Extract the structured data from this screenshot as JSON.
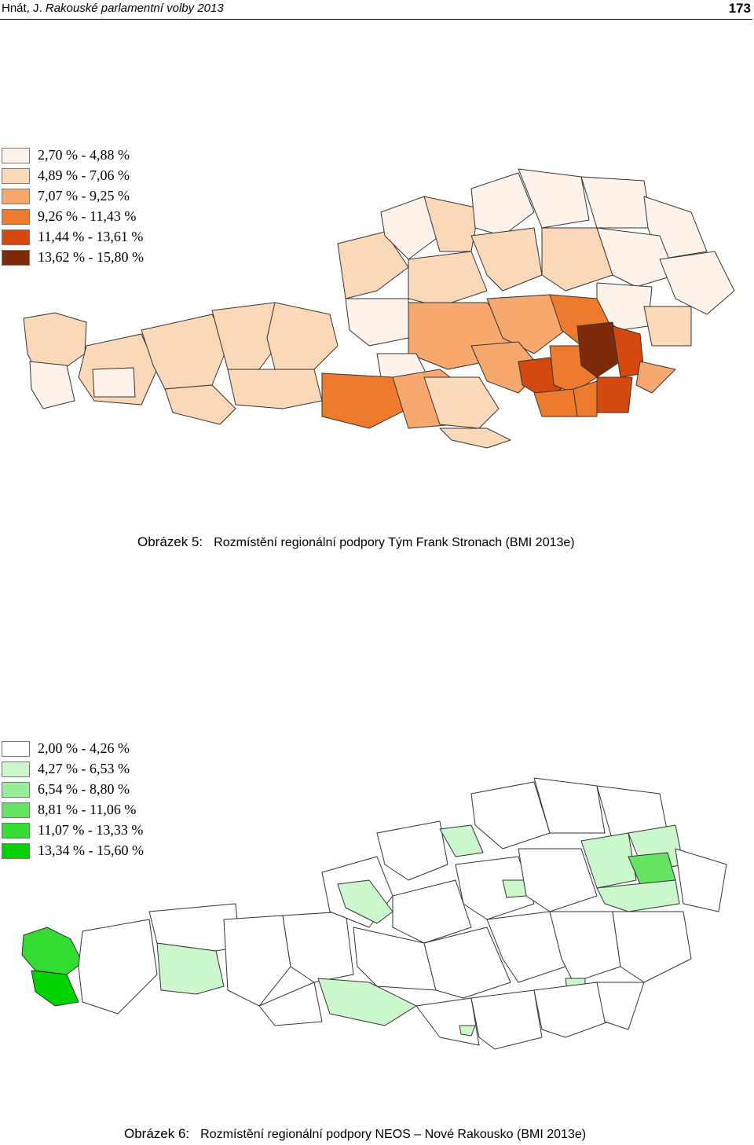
{
  "header": {
    "left_author": "Hnát, J. ",
    "left_title": "Rakouské parlamentní volby 2013",
    "page_number": "173"
  },
  "figure5": {
    "caption_label": "Obrázek 5:",
    "caption_text": "Rozmístění regionální podpory Tým Frank Stronach (BMI 2013e)",
    "legend": [
      {
        "label": "2,70 % - 4,88 %",
        "color": "#fdf3ea"
      },
      {
        "label": "4,89 % - 7,06 %",
        "color": "#fbd8b7"
      },
      {
        "label": "7,07 % - 9,25 %",
        "color": "#f6a86e"
      },
      {
        "label": "9,26 % - 11,43 %",
        "color": "#ee7a2e"
      },
      {
        "label": "11,44 % - 13,61 %",
        "color": "#d4490f"
      },
      {
        "label": "13,62 % - 15,80 %",
        "color": "#7f2a0b"
      }
    ]
  },
  "figure6": {
    "caption_label": "Obrázek 6:",
    "caption_text": "Rozmístění regionální podpory NEOS – Nové Rakousko (BMI 2013e)",
    "legend": [
      {
        "label": "2,00 % - 4,26 %",
        "color": "#ffffff"
      },
      {
        "label": "4,27 % - 6,53 %",
        "color": "#ccf7cc"
      },
      {
        "label": "6,54 % - 8,80 %",
        "color": "#99ee99"
      },
      {
        "label": "8,81 % - 11,06 %",
        "color": "#66e466"
      },
      {
        "label": "11,07 % - 13,33 %",
        "color": "#33db33"
      },
      {
        "label": "13,34 % - 15,60 %",
        "color": "#00d200"
      }
    ]
  }
}
